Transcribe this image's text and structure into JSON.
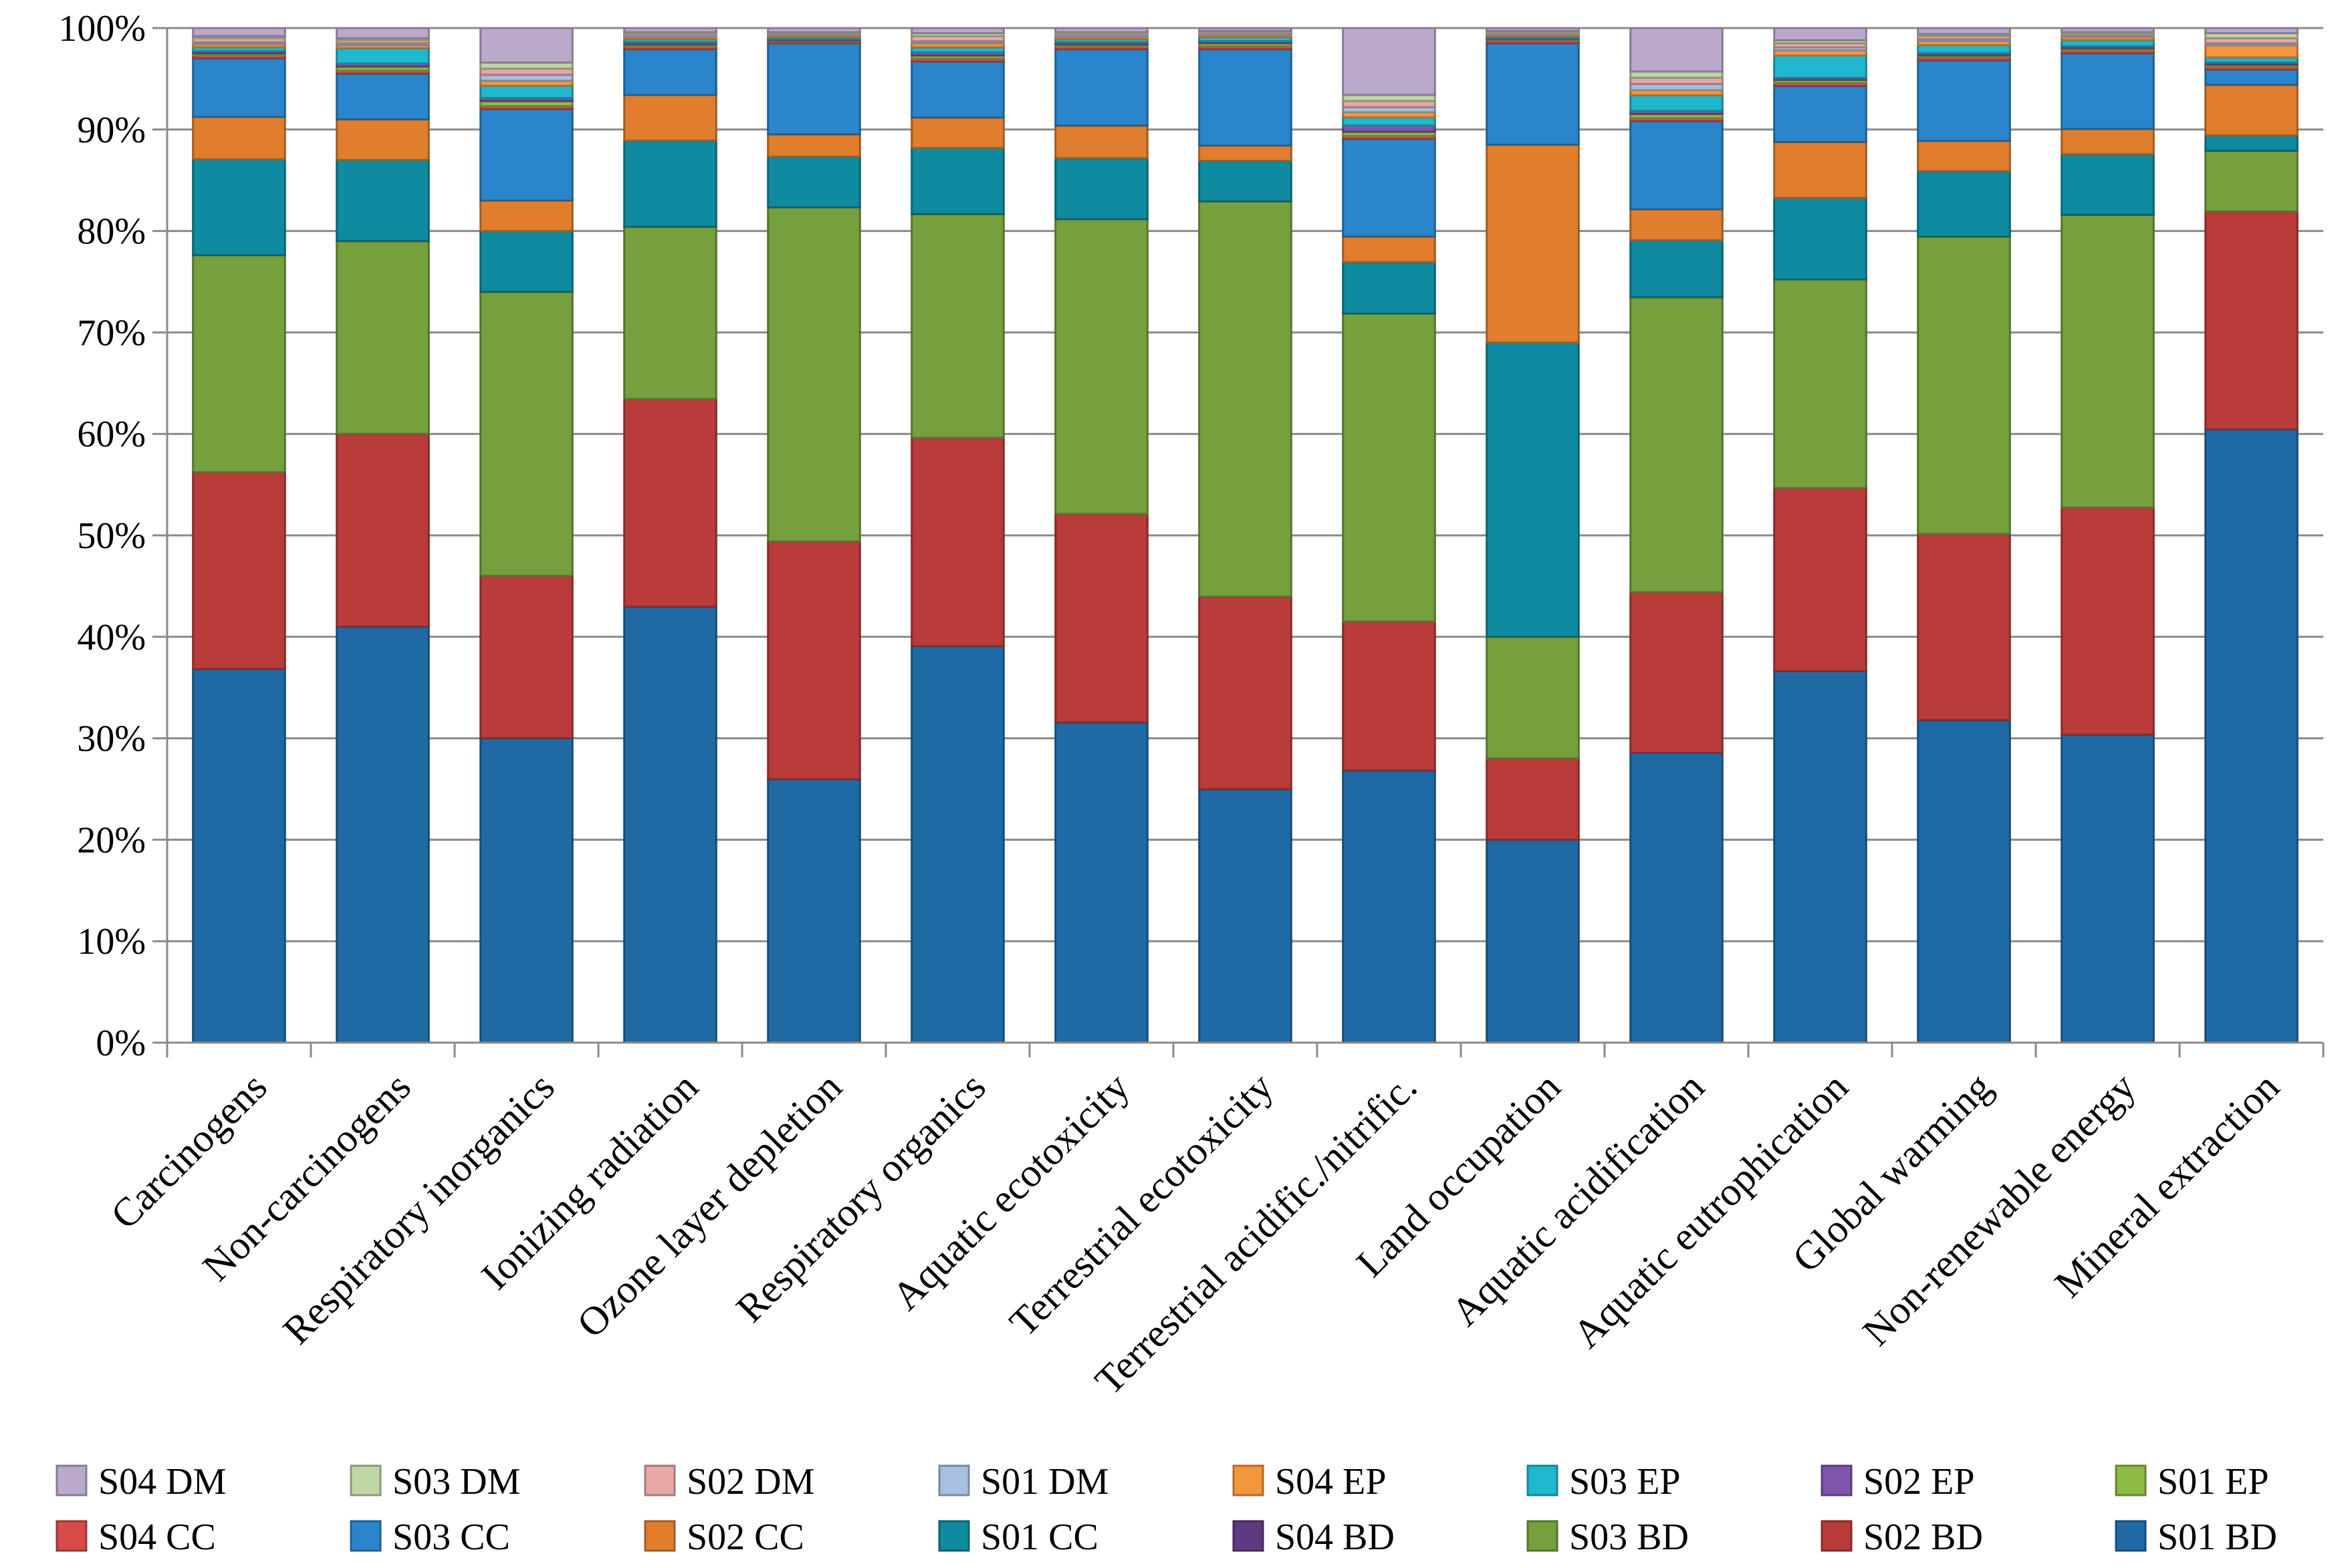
{
  "chart_data": {
    "type": "bar",
    "stacked": true,
    "title": "",
    "xlabel": "",
    "ylabel": "",
    "ylim": [
      0,
      100
    ],
    "y_ticks": [
      "0%",
      "10%",
      "20%",
      "30%",
      "40%",
      "50%",
      "60%",
      "70%",
      "80%",
      "90%",
      "100%"
    ],
    "grid": true,
    "legend_position": "bottom",
    "categories": [
      "Carcinogens",
      "Non-carcinogens",
      "Respiratory inorganics",
      "Ionizing radiation",
      "Ozone layer depletion",
      "Respiratory organics",
      "Aquatic ecotoxicity",
      "Terrestrial ecotoxicity",
      "Terrestrial acidific./nitrific.",
      "Land occupation",
      "Aquatic acidification",
      "Aquatic eutrophication",
      "Global warming",
      "Non-renewable energy",
      "Mineral extraction"
    ],
    "series": [
      {
        "name": "S01 BD",
        "color": "#1F6AA5",
        "values": [
          37,
          41,
          30,
          43,
          26,
          39,
          31.5,
          25,
          26.5,
          20,
          28,
          36.5,
          32,
          30.5,
          60.5
        ]
      },
      {
        "name": "S02 BD",
        "color": "#B93C3A",
        "values": [
          19.5,
          19,
          16,
          20.5,
          23.5,
          20.5,
          20.5,
          19,
          14.5,
          8,
          15.5,
          18,
          18.5,
          22.5,
          21.5
        ]
      },
      {
        "name": "S03 BD",
        "color": "#76A03E",
        "values": [
          21.5,
          19,
          28,
          17,
          33,
          22,
          29,
          39,
          30,
          12,
          28.5,
          20.5,
          29.5,
          29,
          6
        ]
      },
      {
        "name": "S04 BD",
        "color": "#5E3A80",
        "values": [
          0,
          0,
          0,
          0,
          0,
          0,
          0,
          0,
          0,
          0,
          0,
          0,
          0,
          0,
          0
        ]
      },
      {
        "name": "S01 CC",
        "color": "#0F8A9E",
        "values": [
          9.5,
          8,
          6,
          8.5,
          5,
          6.5,
          6,
          4,
          5,
          29,
          5.5,
          8,
          6.5,
          6,
          1.5
        ]
      },
      {
        "name": "S02 CC",
        "color": "#E07E2E",
        "values": [
          4.2,
          4,
          3,
          4.5,
          2.2,
          3,
          3.2,
          1.5,
          2.5,
          19.5,
          3,
          5.5,
          3,
          2.5,
          5
        ]
      },
      {
        "name": "S03 CC",
        "color": "#2A85CB",
        "values": [
          5.8,
          4.5,
          9,
          4.5,
          9,
          5.5,
          7.5,
          9.5,
          9.5,
          10,
          8.5,
          5.5,
          8,
          7.5,
          1.5
        ]
      },
      {
        "name": "S04 CC",
        "color": "#D94B4B",
        "values": [
          0.3,
          0.3,
          0.3,
          0.3,
          0.2,
          0.3,
          0.3,
          0.3,
          0.3,
          0.3,
          0.3,
          0.3,
          0.3,
          0.3,
          0.3
        ]
      },
      {
        "name": "S01 EP",
        "color": "#8DBB45",
        "values": [
          0.2,
          0.4,
          0.5,
          0.2,
          0.1,
          0.3,
          0.2,
          0.3,
          0.4,
          0.1,
          0.4,
          0.3,
          0.2,
          0.2,
          0.2
        ]
      },
      {
        "name": "S02 EP",
        "color": "#7E55A8",
        "values": [
          0.2,
          0.3,
          0.3,
          0.2,
          0.1,
          0.3,
          0.2,
          0.2,
          0.6,
          0.1,
          0.3,
          0.2,
          0.2,
          0.2,
          0.2
        ]
      },
      {
        "name": "S03 EP",
        "color": "#20B8CE",
        "values": [
          0.4,
          1.5,
          1.2,
          0.3,
          0.2,
          0.5,
          0.3,
          0.4,
          0.8,
          0.2,
          1.5,
          2.2,
          0.8,
          0.6,
          0.5
        ]
      },
      {
        "name": "S04 EP",
        "color": "#F3963C",
        "values": [
          0.3,
          0.3,
          0.5,
          0.2,
          0.2,
          0.4,
          0.2,
          0.2,
          0.5,
          0.2,
          0.5,
          0.5,
          0.4,
          0.3,
          1.2
        ]
      },
      {
        "name": "S01 DM",
        "color": "#A7BFE0",
        "values": [
          0.2,
          0.2,
          0.6,
          0.1,
          0.1,
          0.2,
          0.1,
          0.1,
          0.5,
          0.1,
          0.6,
          0.3,
          0.2,
          0.1,
          0.2
        ]
      },
      {
        "name": "S02 DM",
        "color": "#E6A9A8",
        "values": [
          0.4,
          0.3,
          0.6,
          0.2,
          0.1,
          0.5,
          0.2,
          0.2,
          0.6,
          0.1,
          0.6,
          0.4,
          0.3,
          0.2,
          0.5
        ]
      },
      {
        "name": "S03 DM",
        "color": "#BFD6A5",
        "values": [
          0.2,
          0.2,
          0.6,
          0.2,
          0.1,
          0.3,
          0.2,
          0.1,
          0.6,
          0.1,
          0.6,
          0.3,
          0.2,
          0.2,
          0.5
        ]
      },
      {
        "name": "S04 DM",
        "color": "#BBA9CC",
        "values": [
          0.8,
          1,
          3.4,
          0.4,
          0.4,
          0.5,
          0.4,
          0.3,
          6.5,
          0.3,
          4.2,
          1.2,
          0.6,
          0.4,
          0.5
        ]
      }
    ],
    "legend_order": [
      "S04 DM",
      "S03 DM",
      "S02 DM",
      "S01 DM",
      "S04 EP",
      "S03 EP",
      "S02 EP",
      "S01 EP",
      "S04 CC",
      "S03 CC",
      "S02 CC",
      "S01 CC",
      "S04 BD",
      "S03 BD",
      "S02 BD",
      "S01 BD"
    ]
  }
}
